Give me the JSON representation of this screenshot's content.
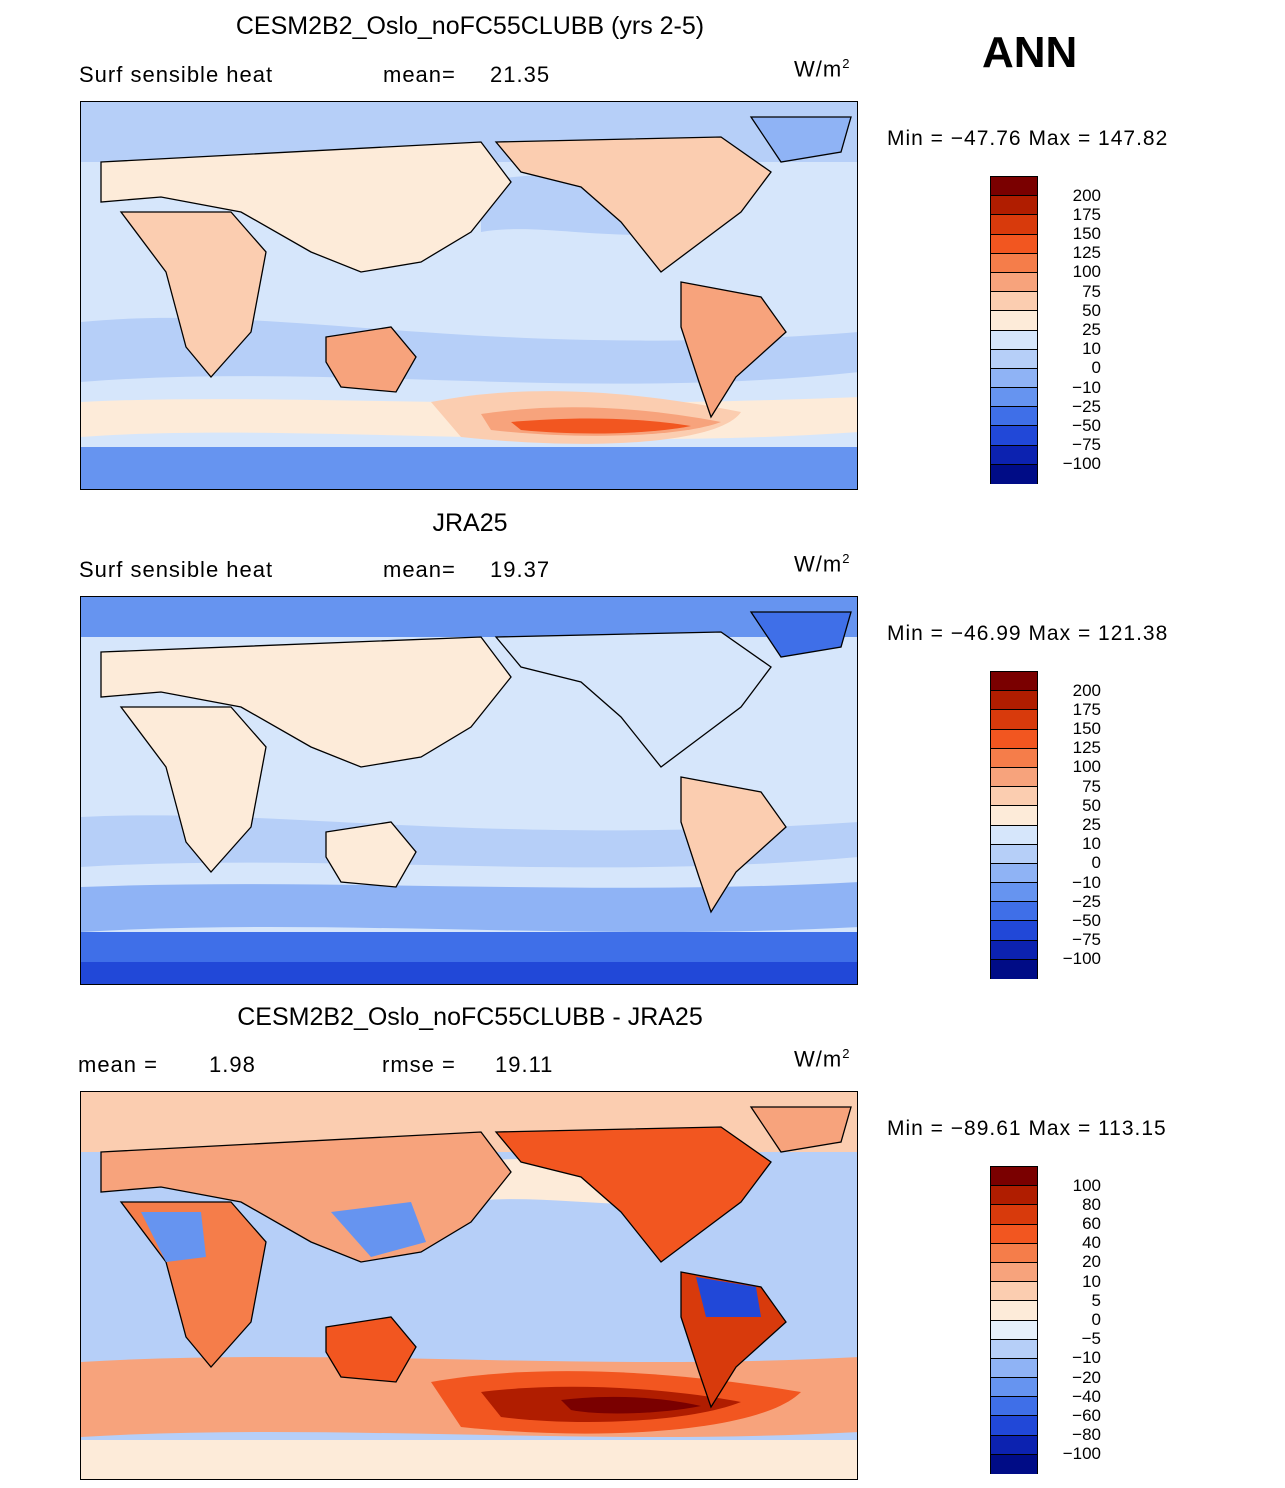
{
  "season": "ANN",
  "units": {
    "base": "W/m",
    "exp": "2"
  },
  "chart_data": [
    {
      "type": "heatmap",
      "title": "CESM2B2_Oslo_noFC55CLUBB (yrs 2-5)",
      "subtitle": "Surf sensible heat",
      "stat_label": "mean=",
      "stat_value": "21.35",
      "min_label": "Min  =  −47.76",
      "max_label": "Max  =  147.82",
      "min": -47.76,
      "max": 147.82,
      "mean": 21.35,
      "levels": [
        "200",
        "175",
        "150",
        "125",
        "100",
        "75",
        "50",
        "25",
        "10",
        "0",
        "−10",
        "−25",
        "−50",
        "−75",
        "−100"
      ],
      "colors": [
        "#7a0000",
        "#b01d00",
        "#d83a0c",
        "#f25620",
        "#f57d4a",
        "#f7a37c",
        "#fbcdb0",
        "#fdebd9",
        "#d6e6fb",
        "#b6cff8",
        "#8fb3f5",
        "#6694f0",
        "#3f6fe8",
        "#2148d8",
        "#0c22b0",
        "#000c86"
      ]
    },
    {
      "type": "heatmap",
      "title": "JRA25",
      "subtitle": "Surf sensible heat",
      "stat_label": "mean=",
      "stat_value": "19.37",
      "min_label": "Min  =  −46.99",
      "max_label": "Max  =  121.38",
      "min": -46.99,
      "max": 121.38,
      "mean": 19.37,
      "levels": [
        "200",
        "175",
        "150",
        "125",
        "100",
        "75",
        "50",
        "25",
        "10",
        "0",
        "−10",
        "−25",
        "−50",
        "−75",
        "−100"
      ],
      "colors": [
        "#7a0000",
        "#b01d00",
        "#d83a0c",
        "#f25620",
        "#f57d4a",
        "#f7a37c",
        "#fbcdb0",
        "#fdebd9",
        "#d6e6fb",
        "#b6cff8",
        "#8fb3f5",
        "#6694f0",
        "#3f6fe8",
        "#2148d8",
        "#0c22b0",
        "#000c86"
      ]
    },
    {
      "type": "heatmap",
      "title": "CESM2B2_Oslo_noFC55CLUBB - JRA25",
      "mean_label": "mean  =",
      "mean_value": "1.98",
      "rmse_label": "rmse  =",
      "rmse_value": "19.11",
      "min_label": "Min  =  −89.61",
      "max_label": "Max  =  113.15",
      "min": -89.61,
      "max": 113.15,
      "mean": 1.98,
      "rmse": 19.11,
      "levels": [
        "100",
        "80",
        "60",
        "40",
        "20",
        "10",
        "5",
        "0",
        "−5",
        "−10",
        "−20",
        "−40",
        "−60",
        "−80",
        "−100"
      ],
      "colors": [
        "#7a0000",
        "#b01d00",
        "#d83a0c",
        "#f25620",
        "#f57d4a",
        "#f7a37c",
        "#fbcdb0",
        "#fdebd9",
        "#e6f0fb",
        "#b6cff8",
        "#8fb3f5",
        "#6694f0",
        "#3f6fe8",
        "#2148d8",
        "#0c22b0",
        "#000c86"
      ]
    }
  ]
}
